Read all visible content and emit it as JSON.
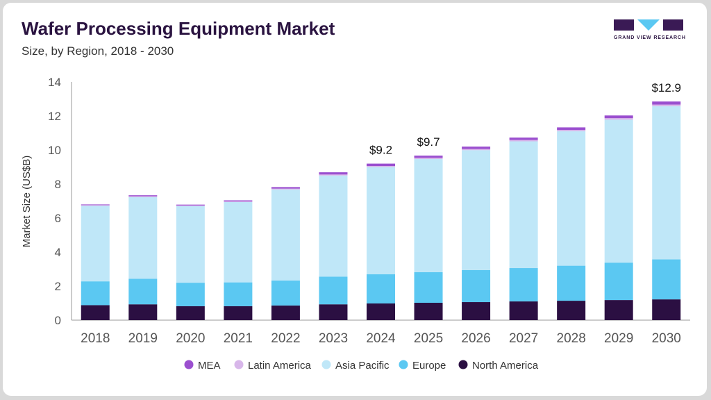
{
  "header": {
    "title": "Wafer Processing Equipment Market",
    "subtitle": "Size, by Region, 2018 - 2030"
  },
  "logo": {
    "text": "GRAND VIEW RESEARCH"
  },
  "colors": {
    "North America": "#2b0f42",
    "Europe": "#5bc8f2",
    "Asia Pacific": "#bfe7f8",
    "Latin America": "#d8b7ea",
    "MEA": "#9b4fcf"
  },
  "chart_data": {
    "type": "bar",
    "stacked": true,
    "title": "Wafer Processing Equipment Market",
    "subtitle": "Size, by Region, 2018 - 2030",
    "xlabel": "",
    "ylabel": "Market Size (US$B)",
    "ylim": [
      0,
      14
    ],
    "yticks": [
      0,
      2,
      4,
      6,
      8,
      10,
      12,
      14
    ],
    "grid": false,
    "legend_position": "bottom",
    "categories": [
      "2018",
      "2019",
      "2020",
      "2021",
      "2022",
      "2023",
      "2024",
      "2025",
      "2026",
      "2027",
      "2028",
      "2029",
      "2030"
    ],
    "series": [
      {
        "name": "North America",
        "values": [
          0.88,
          0.93,
          0.82,
          0.82,
          0.86,
          0.93,
          0.98,
          1.02,
          1.06,
          1.1,
          1.14,
          1.18,
          1.22
        ]
      },
      {
        "name": "Europe",
        "values": [
          1.4,
          1.5,
          1.38,
          1.4,
          1.47,
          1.63,
          1.72,
          1.8,
          1.88,
          1.96,
          2.06,
          2.2,
          2.35
        ]
      },
      {
        "name": "Asia Pacific",
        "values": [
          4.44,
          4.8,
          4.5,
          4.72,
          5.35,
          5.94,
          6.3,
          6.65,
          7.05,
          7.45,
          7.9,
          8.4,
          9.0
        ]
      },
      {
        "name": "Latin America",
        "values": [
          0.04,
          0.05,
          0.04,
          0.04,
          0.05,
          0.06,
          0.06,
          0.07,
          0.07,
          0.08,
          0.08,
          0.09,
          0.1
        ]
      },
      {
        "name": "MEA",
        "values": [
          0.04,
          0.06,
          0.05,
          0.06,
          0.09,
          0.13,
          0.14,
          0.13,
          0.14,
          0.14,
          0.15,
          0.16,
          0.18
        ]
      }
    ],
    "data_labels": [
      {
        "category": "2024",
        "text": "$9.2"
      },
      {
        "category": "2025",
        "text": "$9.7"
      },
      {
        "category": "2030",
        "text": "$12.9"
      }
    ],
    "legend": [
      "MEA",
      "Latin America",
      "Asia Pacific",
      "Europe",
      "North America"
    ]
  }
}
